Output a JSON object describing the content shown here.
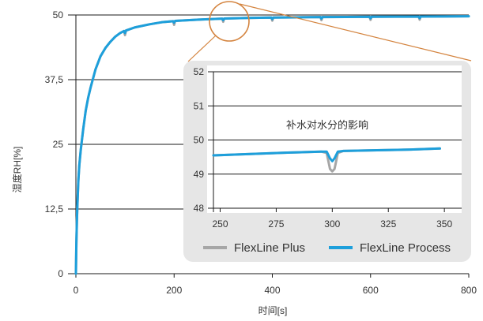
{
  "colors": {
    "axis": "#1a1a1a",
    "inset_background": "#e6e6e6",
    "inset_plot_area": "#ffffff",
    "zoom_marker": "#d4843f"
  },
  "chart_data": [
    {
      "type": "line",
      "xlabel": "时间[s]",
      "ylabel": "湿度RH[%]",
      "xlim": [
        0,
        800
      ],
      "ylim": [
        0,
        50
      ],
      "grid": "horizontal",
      "x_ticks": [
        {
          "value": 0,
          "label": "0"
        },
        {
          "value": 200,
          "label": "200"
        },
        {
          "value": 400,
          "label": "400"
        },
        {
          "value": 600,
          "label": "600"
        },
        {
          "value": 800,
          "label": "800"
        }
      ],
      "y_ticks": [
        {
          "value": 0,
          "label": "0"
        },
        {
          "value": 12.5,
          "label": "12,5"
        },
        {
          "value": 25,
          "label": "25"
        },
        {
          "value": 37.5,
          "label": "37,5"
        },
        {
          "value": 50,
          "label": "50"
        }
      ],
      "x": [
        0,
        1,
        2,
        3,
        5,
        7,
        10,
        15,
        20,
        25,
        30,
        40,
        50,
        60,
        70,
        80,
        90,
        98,
        100,
        102,
        120,
        150,
        175,
        198,
        200,
        202,
        250,
        298,
        300,
        302,
        350,
        398,
        400,
        402,
        450,
        498,
        500,
        502,
        550,
        598,
        600,
        602,
        650,
        698,
        700,
        702,
        750,
        800
      ],
      "series": [
        {
          "name": "FlexLine Plus",
          "color": "#a6a6a6",
          "values": [
            0,
            6,
            10,
            13,
            18,
            21,
            24,
            28,
            31.5,
            34,
            36,
            39.5,
            42,
            43.6,
            44.8,
            45.8,
            46.5,
            46.9,
            46.1,
            47.0,
            47.6,
            48.2,
            48.6,
            48.8,
            48.1,
            48.85,
            49.1,
            49.3,
            48.7,
            49.32,
            49.42,
            49.5,
            48.9,
            49.5,
            49.55,
            49.6,
            49.0,
            49.6,
            49.62,
            49.65,
            49.05,
            49.65,
            49.67,
            49.7,
            49.1,
            49.7,
            49.72,
            49.75
          ]
        },
        {
          "name": "FlexLine Process",
          "color": "#1d9fdb",
          "values": [
            0,
            6,
            10,
            13,
            18,
            21,
            24,
            28,
            31.5,
            34,
            36,
            39.5,
            42,
            43.6,
            44.8,
            45.8,
            46.5,
            46.9,
            46.5,
            47.0,
            47.6,
            48.2,
            48.6,
            48.8,
            48.5,
            48.85,
            49.1,
            49.3,
            49.0,
            49.32,
            49.42,
            49.5,
            49.2,
            49.5,
            49.55,
            49.6,
            49.3,
            49.6,
            49.62,
            49.65,
            49.35,
            49.65,
            49.67,
            49.7,
            49.4,
            49.7,
            49.72,
            49.75
          ]
        }
      ]
    },
    {
      "type": "line",
      "title": "补水对水分的影响",
      "xlim": [
        247,
        357
      ],
      "ylim": [
        48,
        52
      ],
      "grid": "horizontal",
      "legend": "bottom",
      "x_ticks": [
        {
          "value": 250,
          "label": "250"
        },
        {
          "value": 275,
          "label": "275"
        },
        {
          "value": 300,
          "label": "300"
        },
        {
          "value": 325,
          "label": "325"
        },
        {
          "value": 350,
          "label": "350"
        }
      ],
      "y_ticks": [
        {
          "value": 48,
          "label": "48"
        },
        {
          "value": 49,
          "label": "49"
        },
        {
          "value": 50,
          "label": "50"
        },
        {
          "value": 51,
          "label": "51"
        },
        {
          "value": 52,
          "label": "52"
        }
      ],
      "x": [
        247,
        260,
        280,
        295,
        297.5,
        299,
        300,
        301,
        302.5,
        305,
        320,
        335,
        348
      ],
      "series": [
        {
          "color": "#a6a6a6",
          "values": [
            49.55,
            49.58,
            49.63,
            49.66,
            49.62,
            49.15,
            49.08,
            49.15,
            49.62,
            49.68,
            49.7,
            49.72,
            49.75
          ]
        },
        {
          "color": "#1d9fdb",
          "values": [
            49.55,
            49.58,
            49.63,
            49.66,
            49.66,
            49.46,
            49.38,
            49.46,
            49.66,
            49.68,
            49.7,
            49.72,
            49.75
          ]
        }
      ]
    }
  ]
}
